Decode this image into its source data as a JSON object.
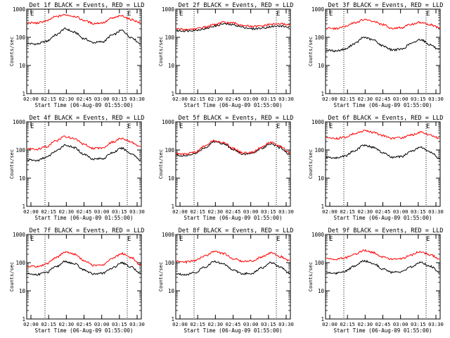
{
  "chart_data": [
    {
      "type": "line",
      "title": "Det 1f BLACK = Events, RED = LLD",
      "xlabel": "Start Time (06-Aug-09 01:55:00)",
      "ylabel": "Counts/sec",
      "yscale": "log",
      "ylim": [
        1,
        1000
      ],
      "x_ticks": [
        "02:00",
        "02:15",
        "02:30",
        "02:45",
        "03:00",
        "03:15",
        "03:30"
      ],
      "y_ticks": [
        "1",
        "10",
        "100",
        "1000"
      ],
      "markers": [
        "E",
        "E"
      ],
      "series": [
        {
          "color": "#000000",
          "values": [
            60,
            58,
            72,
            120,
            200,
            150,
            90,
            65,
            70,
            120,
            175,
            100,
            60
          ]
        },
        {
          "color": "#ff0000",
          "values": [
            330,
            320,
            380,
            540,
            630,
            560,
            400,
            310,
            330,
            480,
            580,
            430,
            330
          ]
        }
      ]
    },
    {
      "type": "line",
      "title": "Det 2f BLACK = Events, RED = LLD",
      "xlabel": "Start Time (06-Aug-09 01:55:00)",
      "ylabel": "Counts/sec",
      "yscale": "log",
      "ylim": [
        1,
        1000
      ],
      "x_ticks": [
        "02:00",
        "02:15",
        "02:30",
        "02:45",
        "03:00",
        "03:15",
        "03:30"
      ],
      "y_ticks": [
        "1",
        "10",
        "100",
        "1000"
      ],
      "markers": [
        "E",
        "E"
      ],
      "series": [
        {
          "color": "#000000",
          "values": [
            170,
            170,
            180,
            200,
            250,
            300,
            280,
            230,
            200,
            210,
            240,
            250,
            230
          ]
        },
        {
          "color": "#ff0000",
          "values": [
            200,
            190,
            200,
            230,
            280,
            340,
            320,
            270,
            240,
            250,
            290,
            300,
            280
          ]
        }
      ]
    },
    {
      "type": "line",
      "title": "Det 3f BLACK = Events, RED = LLD",
      "xlabel": "Start Time (06-Aug-09 01:55:00)",
      "ylabel": "Counts/sec",
      "yscale": "log",
      "ylim": [
        1,
        1000
      ],
      "x_ticks": [
        "02:00",
        "02:15",
        "02:30",
        "02:45",
        "03:00",
        "03:15",
        "03:30"
      ],
      "y_ticks": [
        "1",
        "10",
        "100",
        "1000"
      ],
      "markers": [
        "E",
        "E"
      ],
      "series": [
        {
          "color": "#000000",
          "values": [
            35,
            33,
            38,
            60,
            100,
            80,
            50,
            36,
            38,
            60,
            85,
            55,
            35
          ]
        },
        {
          "color": "#ff0000",
          "values": [
            210,
            205,
            240,
            330,
            420,
            370,
            280,
            210,
            220,
            290,
            340,
            280,
            220
          ]
        }
      ]
    },
    {
      "type": "line",
      "title": "Det 4f BLACK = Events, RED = LLD",
      "xlabel": "Start Time (06-Aug-09 01:55:00)",
      "ylabel": "Counts/sec",
      "yscale": "log",
      "ylim": [
        1,
        1000
      ],
      "x_ticks": [
        "02:00",
        "02:15",
        "02:30",
        "02:45",
        "03:00",
        "03:15",
        "03:30"
      ],
      "y_ticks": [
        "1",
        "10",
        "100",
        "1000"
      ],
      "markers": [
        "E",
        "E"
      ],
      "series": [
        {
          "color": "#000000",
          "values": [
            45,
            42,
            55,
            90,
            150,
            120,
            70,
            48,
            50,
            80,
            115,
            75,
            45
          ]
        },
        {
          "color": "#ff0000",
          "values": [
            110,
            105,
            130,
            210,
            300,
            250,
            160,
            115,
            120,
            190,
            260,
            190,
            130
          ]
        }
      ]
    },
    {
      "type": "line",
      "title": "Det 5f BLACK = Events, RED = LLD",
      "xlabel": "Start Time (06-Aug-09 01:55:00)",
      "ylabel": "Counts/sec",
      "yscale": "log",
      "ylim": [
        1,
        1000
      ],
      "x_ticks": [
        "02:00",
        "02:15",
        "02:30",
        "02:45",
        "03:00",
        "03:15",
        "03:30"
      ],
      "y_ticks": [
        "1",
        "10",
        "100",
        "1000"
      ],
      "markers": [
        "E",
        "E"
      ],
      "series": [
        {
          "color": "#000000",
          "values": [
            65,
            62,
            75,
            120,
            200,
            170,
            105,
            72,
            75,
            115,
            170,
            120,
            70
          ]
        },
        {
          "color": "#ff0000",
          "values": [
            75,
            72,
            85,
            135,
            220,
            185,
            115,
            80,
            82,
            125,
            190,
            135,
            80
          ]
        }
      ]
    },
    {
      "type": "line",
      "title": "Det 6f BLACK = Events, RED = LLD",
      "xlabel": "Start Time (06-Aug-09 01:55:00)",
      "ylabel": "Counts/sec",
      "yscale": "log",
      "ylim": [
        1,
        1000
      ],
      "x_ticks": [
        "02:00",
        "02:15",
        "02:30",
        "02:45",
        "03:00",
        "03:15",
        "03:30"
      ],
      "y_ticks": [
        "1",
        "10",
        "100",
        "1000"
      ],
      "markers": [
        "E",
        "E"
      ],
      "series": [
        {
          "color": "#000000",
          "values": [
            55,
            52,
            62,
            95,
            150,
            125,
            80,
            55,
            58,
            90,
            125,
            85,
            50
          ]
        },
        {
          "color": "#ff0000",
          "values": [
            260,
            255,
            280,
            380,
            480,
            420,
            320,
            260,
            270,
            340,
            430,
            340,
            260
          ]
        }
      ]
    },
    {
      "type": "line",
      "title": "Det 7f BLACK = Events, RED = LLD",
      "xlabel": "Start Time (06-Aug-09 01:55:00)",
      "ylabel": "Counts/sec",
      "yscale": "log",
      "ylim": [
        1,
        1000
      ],
      "x_ticks": [
        "02:00",
        "02:15",
        "02:30",
        "02:45",
        "03:00",
        "03:15",
        "03:30"
      ],
      "y_ticks": [
        "1",
        "10",
        "100",
        "1000"
      ],
      "markers": [
        "E",
        "E"
      ],
      "series": [
        {
          "color": "#000000",
          "values": [
            40,
            38,
            45,
            70,
            110,
            90,
            55,
            40,
            42,
            65,
            100,
            70,
            42
          ]
        },
        {
          "color": "#ff0000",
          "values": [
            75,
            72,
            90,
            150,
            240,
            200,
            120,
            80,
            85,
            140,
            210,
            150,
            85
          ]
        }
      ]
    },
    {
      "type": "line",
      "title": "Det 8f BLACK = Events, RED = LLD",
      "xlabel": "Start Time (06-Aug-09 01:55:00)",
      "ylabel": "Counts/sec",
      "yscale": "log",
      "ylim": [
        1,
        1000
      ],
      "x_ticks": [
        "02:00",
        "02:15",
        "02:30",
        "02:45",
        "03:00",
        "03:15",
        "03:30"
      ],
      "y_ticks": [
        "1",
        "10",
        "100",
        "1000"
      ],
      "markers": [
        "E",
        "E"
      ],
      "series": [
        {
          "color": "#000000",
          "values": [
            40,
            38,
            45,
            70,
            110,
            90,
            55,
            40,
            42,
            65,
            100,
            70,
            42
          ]
        },
        {
          "color": "#ff0000",
          "values": [
            110,
            105,
            120,
            170,
            250,
            210,
            140,
            110,
            115,
            160,
            220,
            165,
            115
          ]
        }
      ]
    },
    {
      "type": "line",
      "title": "Det 9f BLACK = Events, RED = LLD",
      "xlabel": "Start Time (06-Aug-09 01:55:00)",
      "ylabel": "Counts/sec",
      "yscale": "log",
      "ylim": [
        1,
        1000
      ],
      "x_ticks": [
        "02:00",
        "02:15",
        "02:30",
        "02:45",
        "03:00",
        "03:15",
        "03:30"
      ],
      "y_ticks": [
        "1",
        "10",
        "100",
        "1000"
      ],
      "markers": [
        "E",
        "E"
      ],
      "series": [
        {
          "color": "#000000",
          "values": [
            45,
            42,
            50,
            75,
            115,
            95,
            60,
            45,
            47,
            70,
            105,
            75,
            48
          ]
        },
        {
          "color": "#ff0000",
          "values": [
            140,
            135,
            150,
            200,
            270,
            230,
            160,
            135,
            140,
            190,
            250,
            190,
            140
          ]
        }
      ]
    }
  ]
}
